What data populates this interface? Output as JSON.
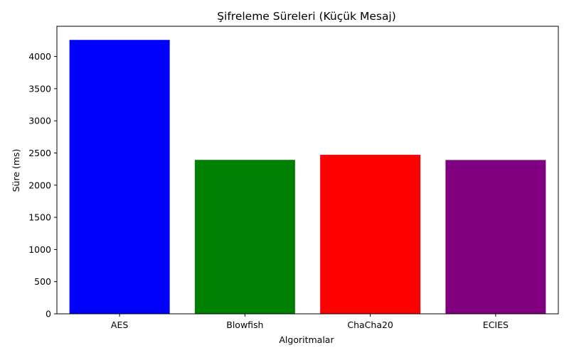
{
  "chart_data": {
    "type": "bar",
    "title": "Şifreleme Süreleri (Küçük Mesaj)",
    "xlabel": "Algoritmalar",
    "ylabel": "Süre (ms)",
    "categories": [
      "AES",
      "Blowfish",
      "ChaCha20",
      "ECIES"
    ],
    "values": [
      4258,
      2393,
      2472,
      2391
    ],
    "colors": [
      "#0000ff",
      "#008000",
      "#ff0000",
      "#800080"
    ],
    "ylim": [
      0,
      4470
    ],
    "yticks": [
      0,
      500,
      1000,
      1500,
      2000,
      2500,
      3000,
      3500,
      4000
    ],
    "grid": false,
    "legend": "none"
  }
}
